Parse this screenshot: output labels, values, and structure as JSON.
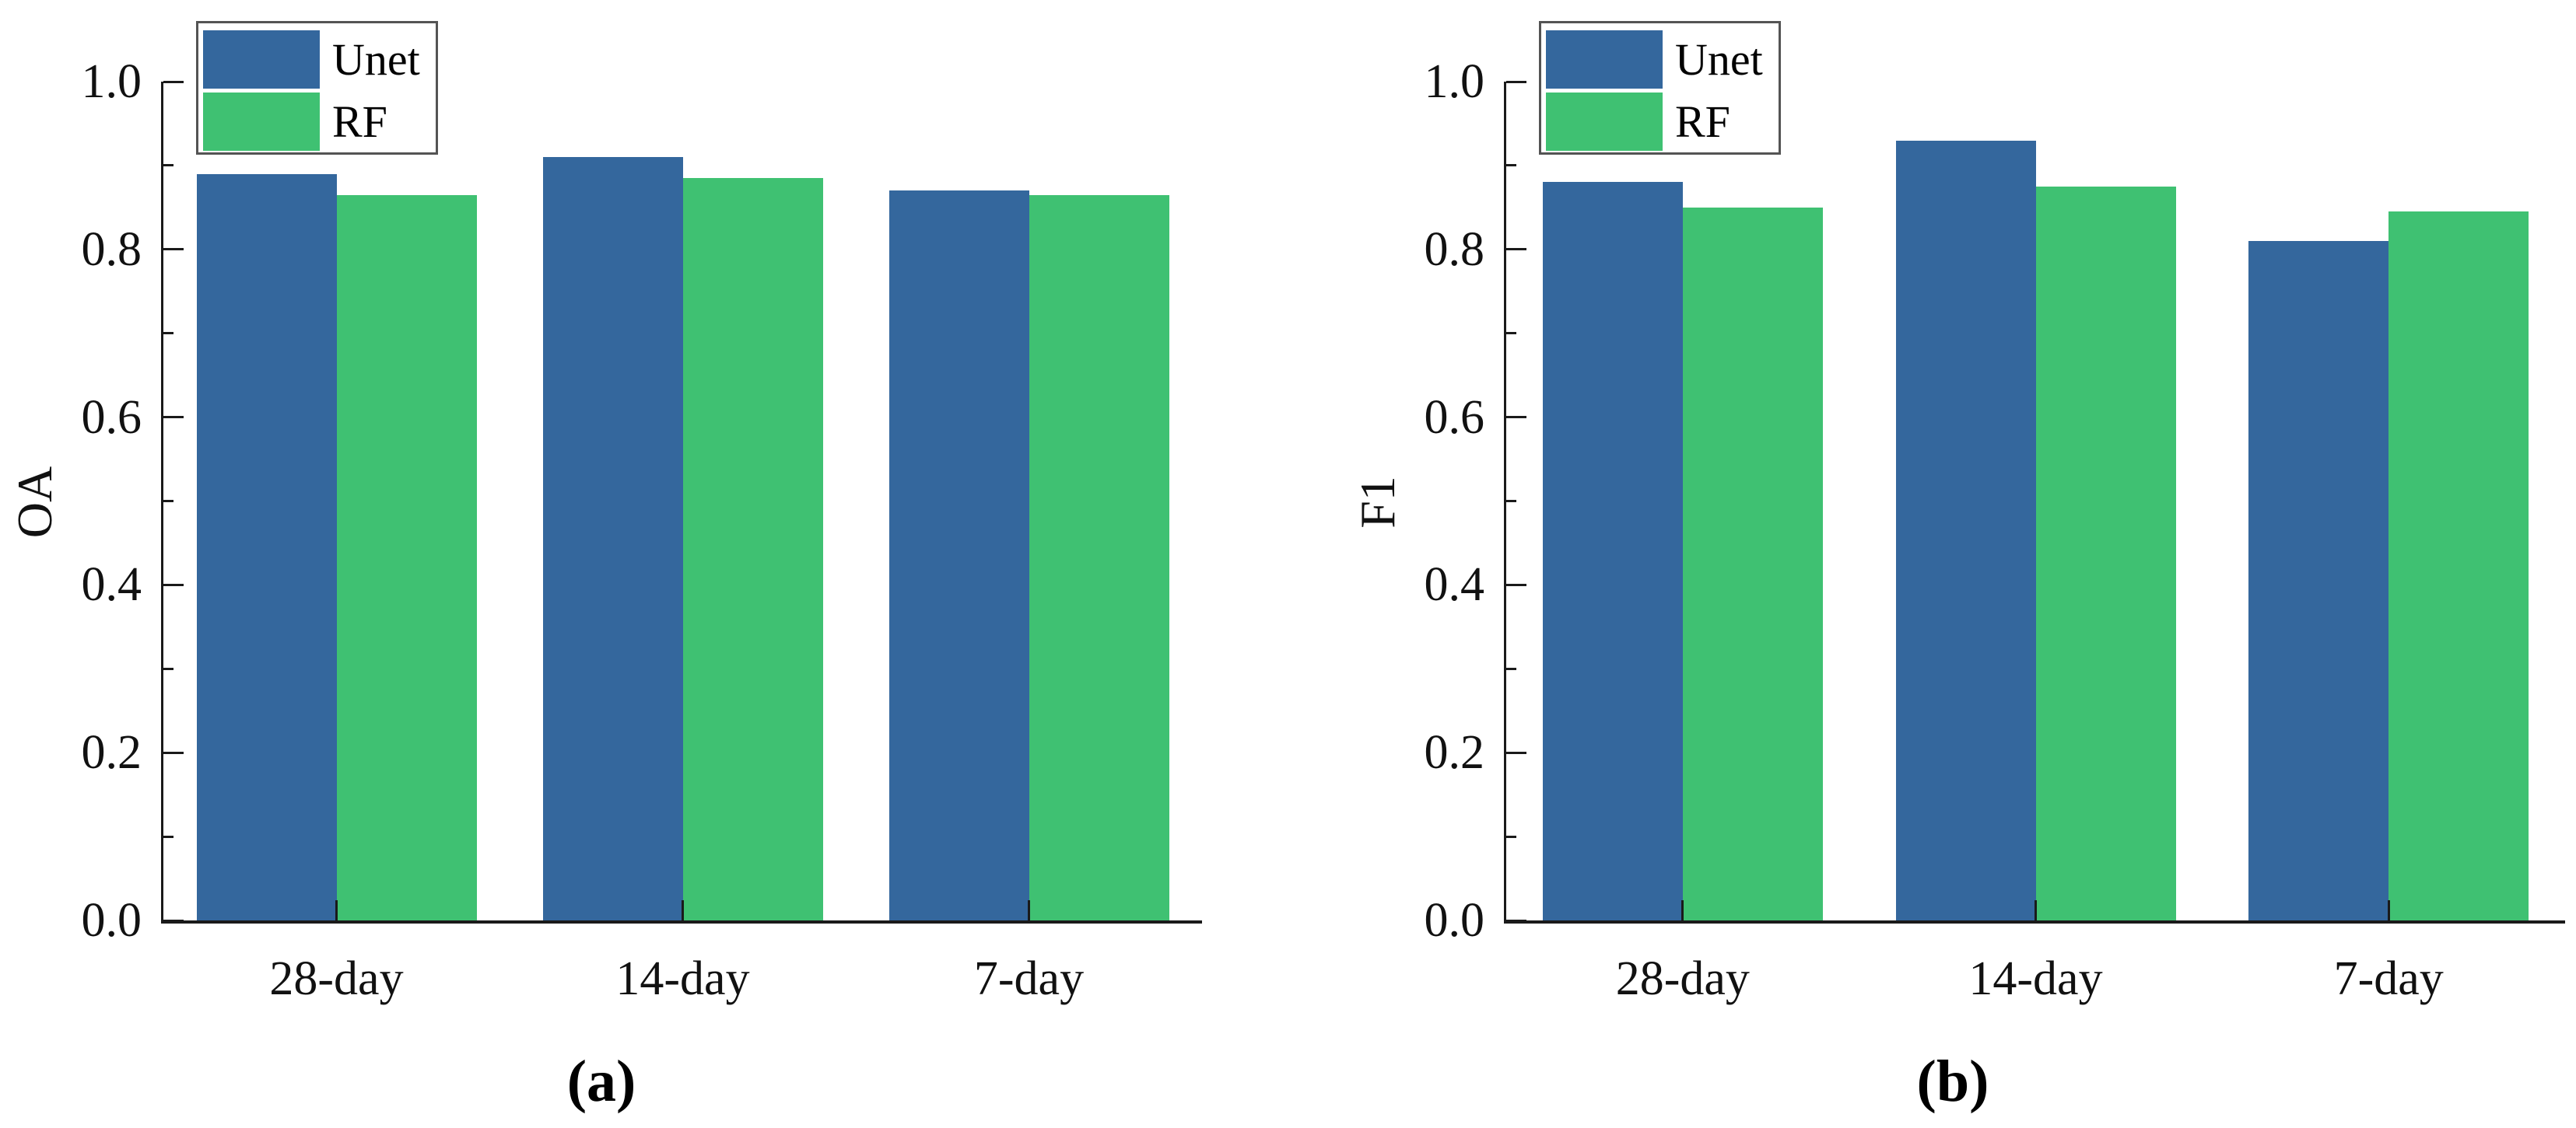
{
  "chart_data": [
    {
      "type": "bar",
      "panel": "a",
      "caption": "(a)",
      "ylabel": "OA",
      "xlabel": "",
      "categories": [
        "28-day",
        "14-day",
        "7-day"
      ],
      "series": [
        {
          "name": "Unet",
          "color": "#34679d",
          "values": [
            0.89,
            0.91,
            0.87
          ]
        },
        {
          "name": "RF",
          "color": "#3fc172",
          "values": [
            0.865,
            0.885,
            0.865
          ]
        }
      ],
      "ylim": [
        0.0,
        1.0
      ],
      "ytick_values": [
        0.0,
        0.2,
        0.4,
        0.6,
        0.8,
        1.0
      ],
      "ytick_labels": [
        "0.0",
        "0.2",
        "0.4",
        "0.6",
        "0.8",
        "1.0"
      ],
      "minor_tick_values": [
        0.1,
        0.3,
        0.5,
        0.7,
        0.9
      ],
      "grid": false,
      "legend_position": "top-left"
    },
    {
      "type": "bar",
      "panel": "b",
      "caption": "(b)",
      "ylabel": "F1",
      "xlabel": "",
      "categories": [
        "28-day",
        "14-day",
        "7-day"
      ],
      "series": [
        {
          "name": "Unet",
          "color": "#34679d",
          "values": [
            0.88,
            0.93,
            0.81
          ]
        },
        {
          "name": "RF",
          "color": "#3fc172",
          "values": [
            0.85,
            0.875,
            0.845
          ]
        }
      ],
      "ylim": [
        0.0,
        1.0
      ],
      "ytick_values": [
        0.0,
        0.2,
        0.4,
        0.6,
        0.8,
        1.0
      ],
      "ytick_labels": [
        "0.0",
        "0.2",
        "0.4",
        "0.6",
        "0.8",
        "1.0"
      ],
      "minor_tick_values": [
        0.1,
        0.3,
        0.5,
        0.7,
        0.9
      ],
      "grid": false,
      "legend_position": "top-left"
    }
  ],
  "legend": {
    "entries": [
      "Unet",
      "RF"
    ]
  },
  "colors": {
    "unet_blue": "#34679d",
    "rf_green": "#3fc172",
    "axis": "#1a1a1a",
    "legend_border": "#545454",
    "background": "#ffffff"
  }
}
